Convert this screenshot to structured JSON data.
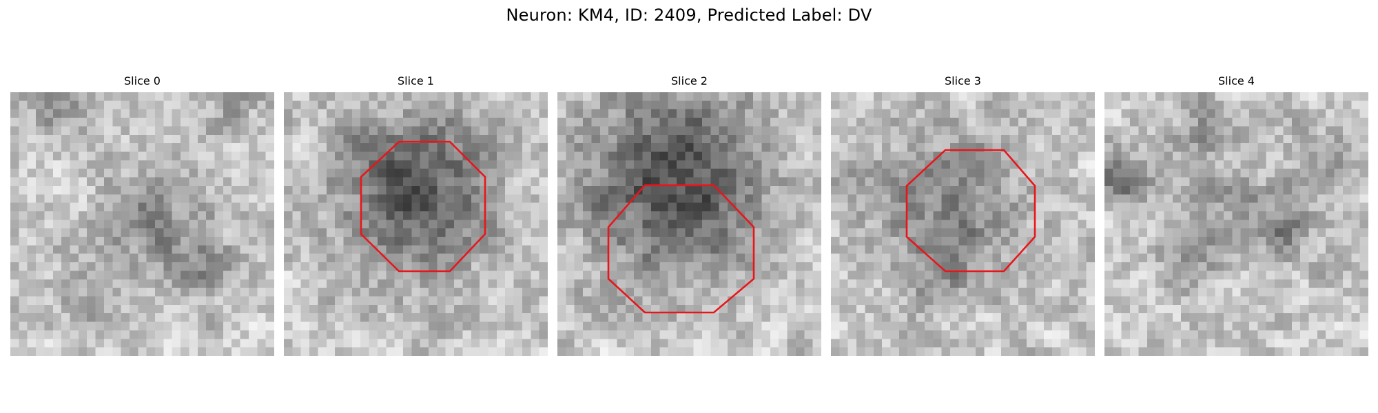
{
  "figure": {
    "title": "Neuron: KM4, ID: 2409, Predicted Label: DV"
  },
  "slices": [
    {
      "title": "Slice 0",
      "has_outline": false
    },
    {
      "title": "Slice 1",
      "has_outline": true
    },
    {
      "title": "Slice 2",
      "has_outline": true
    },
    {
      "title": "Slice 3",
      "has_outline": true
    },
    {
      "title": "Slice 4",
      "has_outline": false
    }
  ],
  "colors": {
    "outline": "#e8161b",
    "background": "#ffffff"
  },
  "image_style": "grayscale-noise-patch"
}
